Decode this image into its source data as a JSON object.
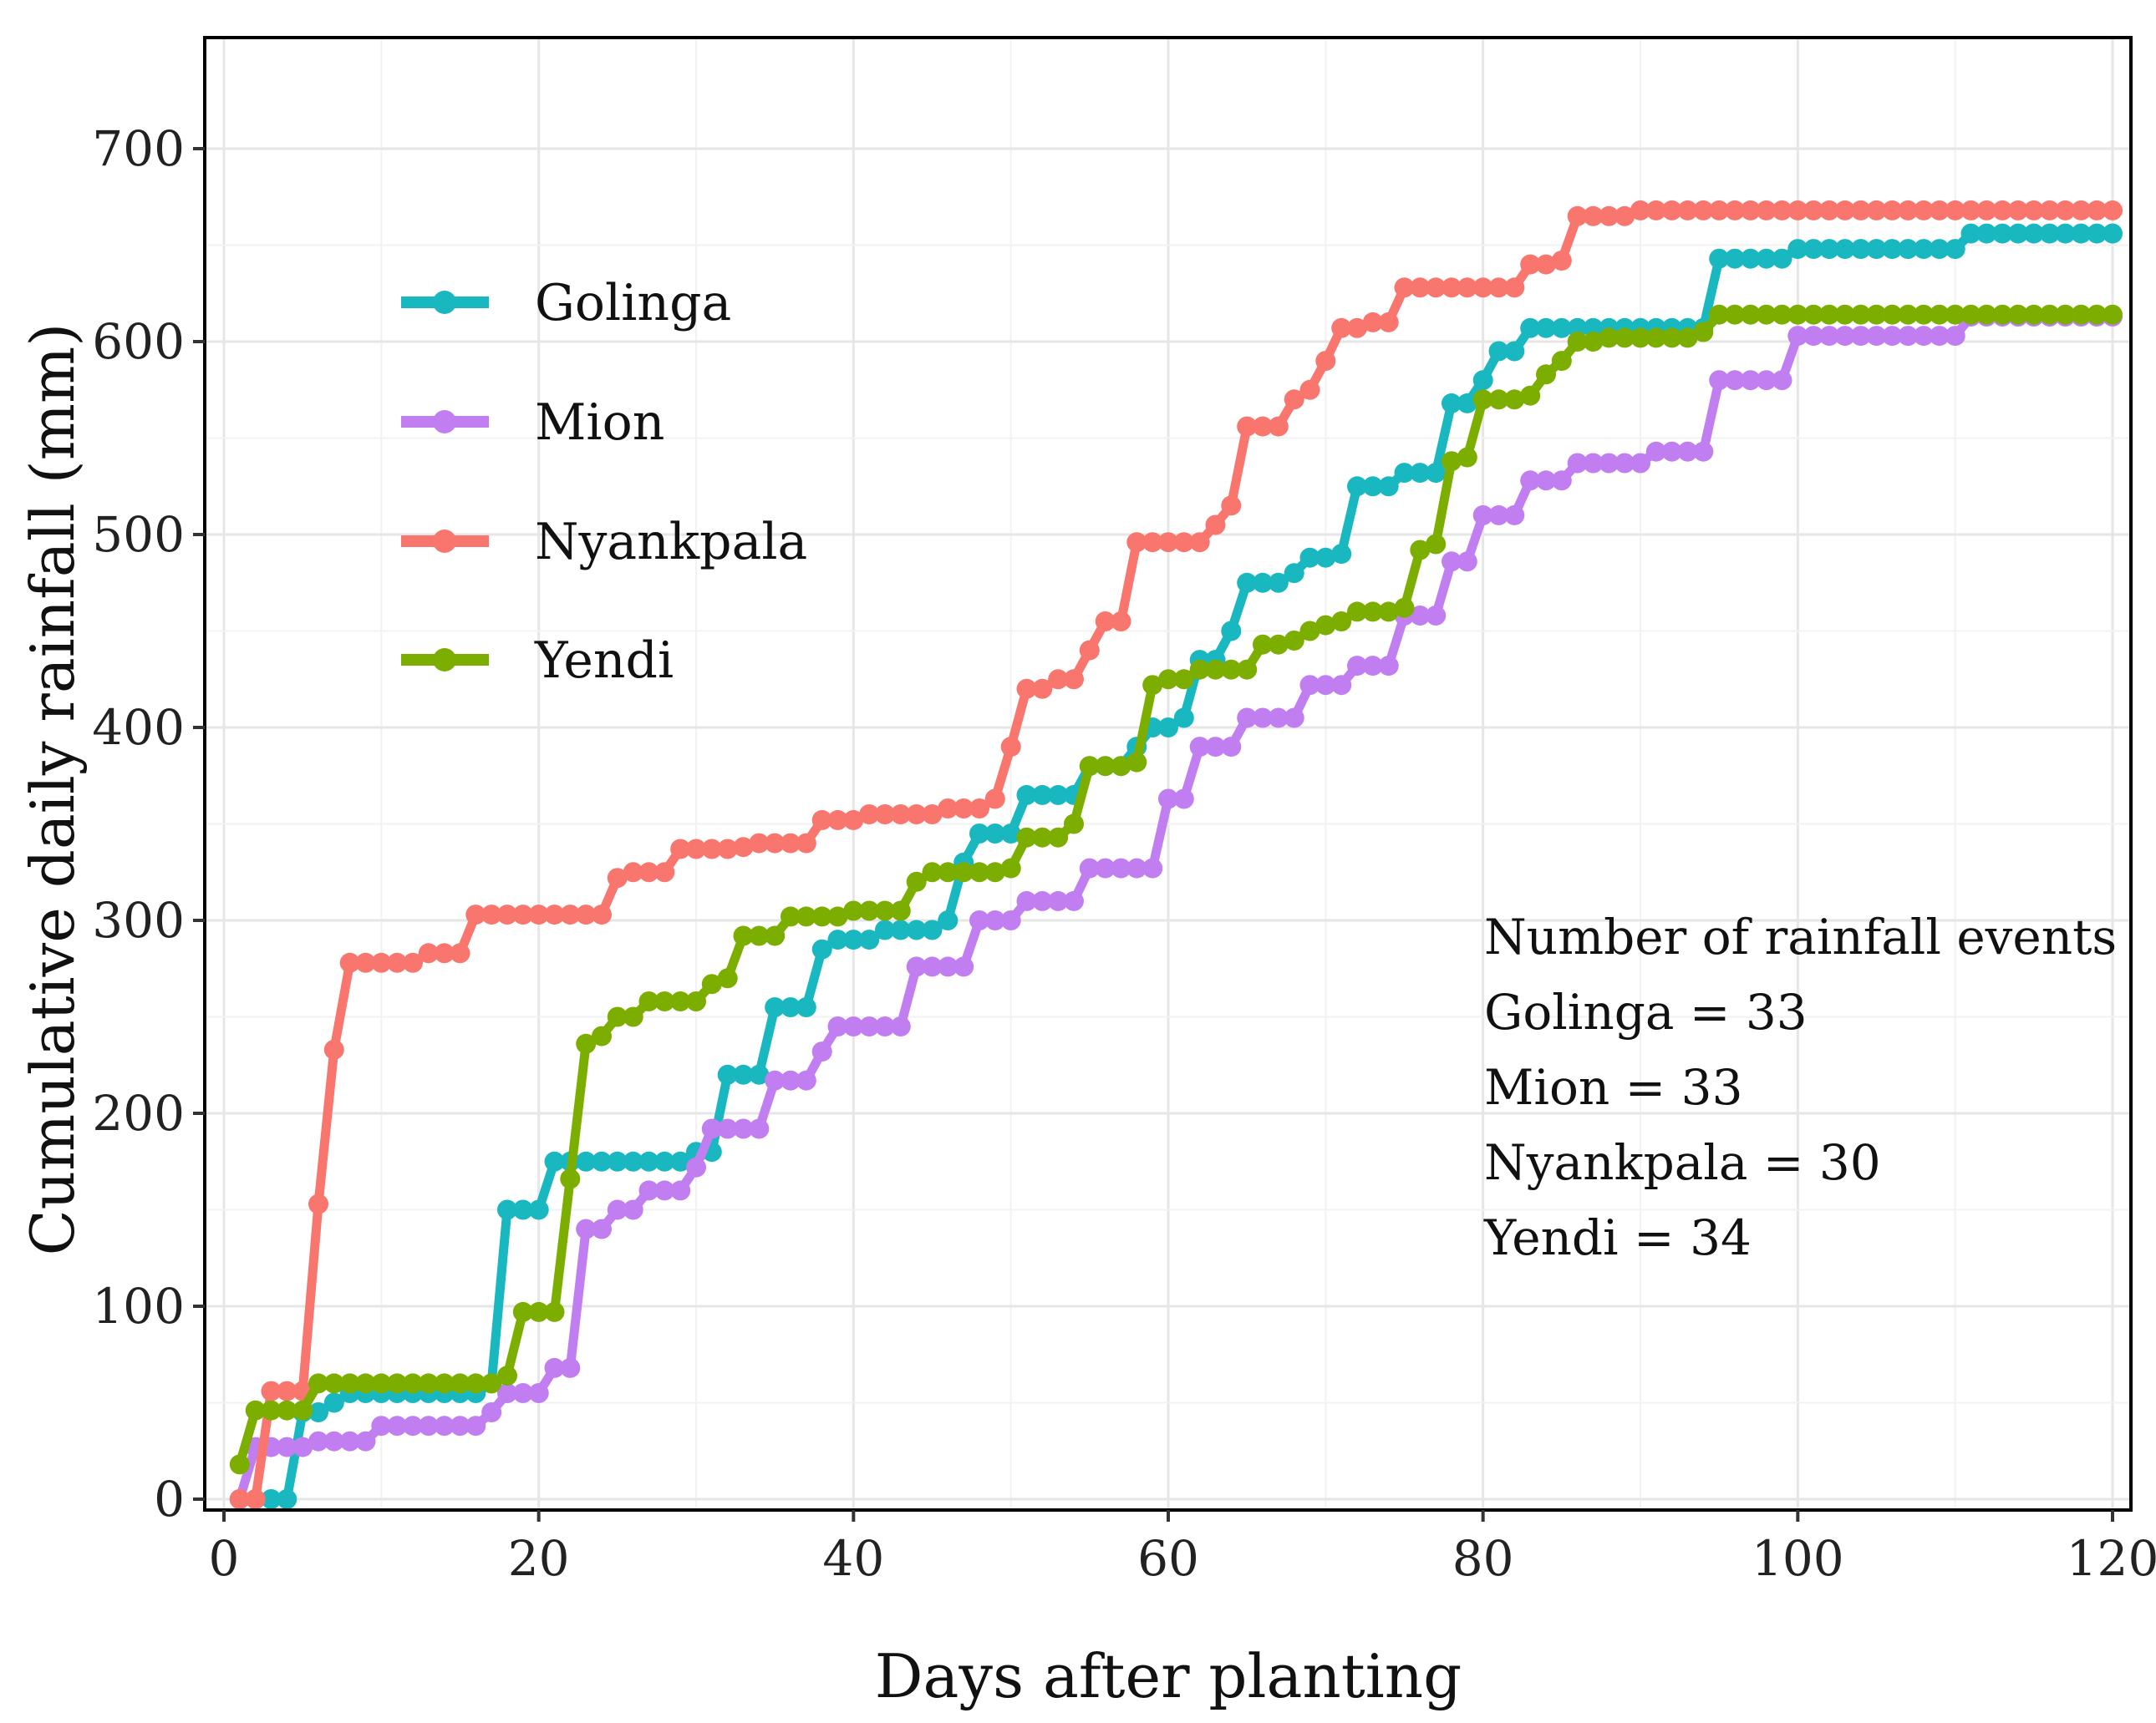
{
  "chart_data": {
    "type": "line",
    "xlabel": "Days after planting",
    "ylabel": "Cumulative daily rainfall (mm)",
    "xlim": [
      0,
      120
    ],
    "ylim": [
      0,
      750
    ],
    "xticks": [
      0,
      20,
      40,
      60,
      80,
      100,
      120
    ],
    "yticks": [
      0,
      100,
      200,
      300,
      400,
      500,
      600,
      700
    ],
    "grid": true,
    "legend_position": "top-left",
    "series": [
      {
        "name": "Golinga",
        "color": "#19B8C0",
        "steps": [
          [
            1,
            0
          ],
          [
            4,
            0
          ],
          [
            5,
            45
          ],
          [
            7,
            50
          ],
          [
            8,
            55
          ],
          [
            17,
            60
          ],
          [
            18,
            150
          ],
          [
            21,
            175
          ],
          [
            30,
            180
          ],
          [
            32,
            220
          ],
          [
            35,
            255
          ],
          [
            38,
            285
          ],
          [
            39,
            290
          ],
          [
            42,
            295
          ],
          [
            46,
            300
          ],
          [
            47,
            330
          ],
          [
            48,
            345
          ],
          [
            51,
            365
          ],
          [
            55,
            380
          ],
          [
            58,
            390
          ],
          [
            59,
            400
          ],
          [
            61,
            405
          ],
          [
            62,
            435
          ],
          [
            64,
            450
          ],
          [
            65,
            475
          ],
          [
            68,
            480
          ],
          [
            69,
            488
          ],
          [
            71,
            490
          ],
          [
            72,
            525
          ],
          [
            75,
            532
          ],
          [
            78,
            568
          ],
          [
            80,
            580
          ],
          [
            81,
            595
          ],
          [
            83,
            607
          ],
          [
            94,
            607
          ],
          [
            95,
            643
          ],
          [
            98,
            643
          ],
          [
            100,
            648
          ],
          [
            110,
            648
          ],
          [
            111,
            656
          ],
          [
            120,
            656
          ]
        ]
      },
      {
        "name": "Mion",
        "color": "#C07EF1",
        "steps": [
          [
            1,
            0
          ],
          [
            2,
            27
          ],
          [
            6,
            30
          ],
          [
            10,
            38
          ],
          [
            17,
            45
          ],
          [
            18,
            55
          ],
          [
            21,
            68
          ],
          [
            23,
            140
          ],
          [
            25,
            150
          ],
          [
            27,
            160
          ],
          [
            30,
            172
          ],
          [
            31,
            192
          ],
          [
            35,
            217
          ],
          [
            38,
            232
          ],
          [
            39,
            245
          ],
          [
            44,
            276
          ],
          [
            48,
            300
          ],
          [
            51,
            310
          ],
          [
            55,
            327
          ],
          [
            60,
            363
          ],
          [
            62,
            390
          ],
          [
            65,
            405
          ],
          [
            68,
            405
          ],
          [
            69,
            422
          ],
          [
            72,
            432
          ],
          [
            75,
            458
          ],
          [
            77,
            458
          ],
          [
            78,
            486
          ],
          [
            80,
            510
          ],
          [
            82,
            510
          ],
          [
            83,
            528
          ],
          [
            86,
            537
          ],
          [
            90,
            537
          ],
          [
            91,
            543
          ],
          [
            94,
            543
          ],
          [
            95,
            580
          ],
          [
            99,
            580
          ],
          [
            100,
            603
          ],
          [
            110,
            603
          ],
          [
            111,
            613
          ],
          [
            120,
            613
          ]
        ]
      },
      {
        "name": "Nyankpala",
        "color": "#F8766D",
        "steps": [
          [
            1,
            0
          ],
          [
            2,
            0
          ],
          [
            3,
            56
          ],
          [
            5,
            56
          ],
          [
            6,
            153
          ],
          [
            7,
            233
          ],
          [
            8,
            278
          ],
          [
            12,
            278
          ],
          [
            13,
            283
          ],
          [
            15,
            283
          ],
          [
            16,
            303
          ],
          [
            24,
            303
          ],
          [
            25,
            322
          ],
          [
            26,
            325
          ],
          [
            28,
            325
          ],
          [
            29,
            337
          ],
          [
            33,
            338
          ],
          [
            34,
            340
          ],
          [
            37,
            340
          ],
          [
            38,
            352
          ],
          [
            41,
            355
          ],
          [
            46,
            358
          ],
          [
            49,
            363
          ],
          [
            50,
            390
          ],
          [
            51,
            420
          ],
          [
            53,
            425
          ],
          [
            55,
            440
          ],
          [
            56,
            455
          ],
          [
            58,
            496
          ],
          [
            62,
            496
          ],
          [
            63,
            505
          ],
          [
            64,
            515
          ],
          [
            65,
            556
          ],
          [
            68,
            570
          ],
          [
            69,
            575
          ],
          [
            70,
            590
          ],
          [
            71,
            607
          ],
          [
            73,
            610
          ],
          [
            75,
            628
          ],
          [
            82,
            628
          ],
          [
            83,
            640
          ],
          [
            85,
            642
          ],
          [
            86,
            665
          ],
          [
            89,
            665
          ],
          [
            90,
            668
          ],
          [
            120,
            668
          ]
        ]
      },
      {
        "name": "Yendi",
        "color": "#7CAE00",
        "steps": [
          [
            1,
            18
          ],
          [
            2,
            46
          ],
          [
            6,
            60
          ],
          [
            18,
            64
          ],
          [
            19,
            97
          ],
          [
            21,
            97
          ],
          [
            22,
            166
          ],
          [
            23,
            236
          ],
          [
            24,
            240
          ],
          [
            25,
            250
          ],
          [
            27,
            258
          ],
          [
            31,
            267
          ],
          [
            32,
            270
          ],
          [
            33,
            292
          ],
          [
            36,
            302
          ],
          [
            40,
            305
          ],
          [
            43,
            305
          ],
          [
            44,
            320
          ],
          [
            45,
            325
          ],
          [
            48,
            325
          ],
          [
            50,
            327
          ],
          [
            51,
            343
          ],
          [
            54,
            350
          ],
          [
            55,
            380
          ],
          [
            58,
            382
          ],
          [
            59,
            422
          ],
          [
            60,
            425
          ],
          [
            62,
            430
          ],
          [
            66,
            443
          ],
          [
            68,
            445
          ],
          [
            69,
            450
          ],
          [
            70,
            453
          ],
          [
            71,
            455
          ],
          [
            72,
            460
          ],
          [
            75,
            462
          ],
          [
            76,
            492
          ],
          [
            77,
            495
          ],
          [
            78,
            538
          ],
          [
            79,
            540
          ],
          [
            80,
            570
          ],
          [
            83,
            572
          ],
          [
            84,
            583
          ],
          [
            85,
            590
          ],
          [
            86,
            600
          ],
          [
            88,
            602
          ],
          [
            94,
            605
          ],
          [
            95,
            614
          ],
          [
            120,
            614
          ]
        ]
      }
    ],
    "annotation": {
      "title": "Number of rainfall events",
      "lines": [
        "Golinga = 33",
        "Mion = 33",
        "Nyankpala = 30",
        "Yendi = 34"
      ]
    }
  }
}
